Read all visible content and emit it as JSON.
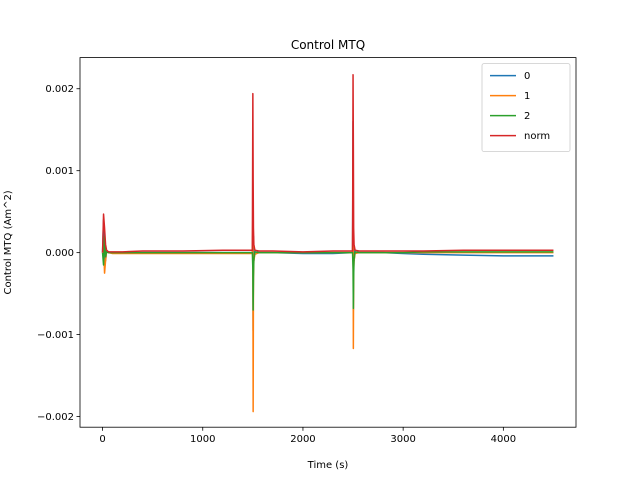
{
  "chart_data": {
    "type": "line",
    "title": "Control MTQ",
    "xlabel": "Time (s)",
    "ylabel": "Control MTQ (Am^2)",
    "xlim": [
      -225,
      4725
    ],
    "ylim": [
      -0.00213,
      0.00238
    ],
    "xticks": [
      0,
      1000,
      2000,
      3000,
      4000
    ],
    "xtick_labels": [
      "0",
      "1000",
      "2000",
      "3000",
      "4000"
    ],
    "yticks": [
      -0.002,
      -0.001,
      0.0,
      0.001,
      0.002
    ],
    "ytick_labels": [
      "−0.002",
      "−0.001",
      "0.000",
      "0.001",
      "0.002"
    ],
    "grid": false,
    "legend_position": "top-right",
    "series": [
      {
        "name": "0",
        "color": "#1f77b4",
        "x": [
          0,
          10,
          20,
          30,
          40,
          60,
          100,
          200,
          400,
          800,
          1200,
          1495,
          1500,
          1503,
          1506,
          1510,
          1520,
          1560,
          1700,
          2000,
          2300,
          2495,
          2500,
          2503,
          2506,
          2510,
          2520,
          2560,
          2800,
          3000,
          3200,
          3600,
          4000,
          4300,
          4500
        ],
        "y": [
          0,
          0.0004,
          3e-05,
          -0.0001,
          2e-05,
          0,
          0,
          0,
          0,
          0,
          0,
          0,
          0.0003,
          -0.00095,
          0.0002,
          -0.0001,
          1e-05,
          0,
          0,
          -1e-05,
          -1e-05,
          0,
          0.0016,
          -0.0007,
          0.0002,
          -0.0001,
          1e-05,
          0,
          0,
          -1e-05,
          -2e-05,
          -3e-05,
          -4e-05,
          -4e-05,
          -4e-05
        ]
      },
      {
        "name": "1",
        "color": "#ff7f0e",
        "x": [
          0,
          10,
          20,
          30,
          40,
          60,
          100,
          200,
          400,
          800,
          1200,
          1495,
          1500,
          1503,
          1506,
          1510,
          1520,
          1560,
          1700,
          2000,
          2300,
          2495,
          2500,
          2503,
          2506,
          2510,
          2520,
          2560,
          2800,
          3000,
          3200,
          3600,
          4000,
          4300,
          4500
        ],
        "y": [
          0,
          0.0001,
          -0.00025,
          -0.0001,
          1e-05,
          0,
          -1e-05,
          -1e-05,
          -1e-05,
          -1e-05,
          -1e-05,
          -1e-05,
          0.0005,
          -0.00194,
          -0.0003,
          -0.0001,
          -2e-05,
          0,
          0,
          0,
          0,
          0,
          0.0009,
          -0.00117,
          -0.0002,
          -0.0001,
          -1e-05,
          0,
          0,
          0,
          0,
          0,
          0,
          0,
          0
        ]
      },
      {
        "name": "2",
        "color": "#2ca02c",
        "x": [
          0,
          10,
          20,
          30,
          40,
          60,
          100,
          200,
          400,
          800,
          1200,
          1495,
          1500,
          1503,
          1506,
          1510,
          1520,
          1560,
          1700,
          2000,
          2300,
          2495,
          2500,
          2503,
          2506,
          2510,
          2520,
          2560,
          2800,
          3000,
          3200,
          3600,
          4000,
          4300,
          4500
        ],
        "y": [
          0,
          -0.00015,
          0.0002,
          -5e-05,
          1e-05,
          0,
          0,
          0,
          0,
          0,
          0,
          0,
          -0.0002,
          -0.0007,
          -0.0003,
          -8e-05,
          1e-05,
          0,
          0,
          0,
          0,
          0,
          -0.0002,
          -0.00068,
          -0.0003,
          -8e-05,
          1e-05,
          0,
          0,
          0,
          1e-05,
          1e-05,
          1e-05,
          1e-05,
          1e-05
        ]
      },
      {
        "name": "norm",
        "color": "#d62728",
        "x": [
          0,
          10,
          20,
          30,
          40,
          60,
          100,
          200,
          400,
          800,
          1200,
          1495,
          1500,
          1503,
          1506,
          1510,
          1520,
          1560,
          1700,
          2000,
          2300,
          2495,
          2500,
          2503,
          2506,
          2510,
          2520,
          2560,
          2800,
          3000,
          3200,
          3600,
          4000,
          4300,
          4500
        ],
        "y": [
          0,
          0.00047,
          0.0003,
          0.0001,
          3e-05,
          1e-05,
          1e-05,
          1e-05,
          2e-05,
          2e-05,
          3e-05,
          3e-05,
          0.00194,
          0.0009,
          0.0003,
          0.0001,
          3e-05,
          2e-05,
          2e-05,
          1e-05,
          2e-05,
          2e-05,
          0.00217,
          0.0013,
          0.0003,
          0.0001,
          3e-05,
          2e-05,
          2e-05,
          2e-05,
          2e-05,
          3e-05,
          3e-05,
          3e-05,
          3e-05
        ]
      }
    ]
  }
}
